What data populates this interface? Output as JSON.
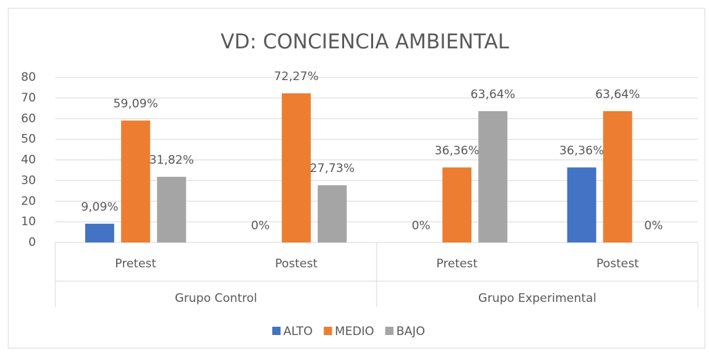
{
  "chart_data": {
    "type": "bar",
    "title": "VD: CONCIENCIA AMBIENTAL",
    "categories": [
      "Pretest",
      "Postest",
      "Pretest",
      "Postest"
    ],
    "groups": [
      "Grupo Control",
      "Grupo Experimental"
    ],
    "series": [
      {
        "name": "ALTO",
        "color": "#4472c4",
        "values": [
          9.09,
          0,
          0,
          36.36
        ],
        "value_labels": [
          "9,09%",
          "0%",
          "0%",
          "36,36%"
        ]
      },
      {
        "name": "MEDIO",
        "color": "#ed7d31",
        "values": [
          59.09,
          72.27,
          36.36,
          63.64
        ],
        "value_labels": [
          "59,09%",
          "72,27%",
          "36,36%",
          "63,64%"
        ]
      },
      {
        "name": "BAJO",
        "color": "#a5a5a5",
        "values": [
          31.82,
          27.73,
          63.64,
          0
        ],
        "value_labels": [
          "31,82%",
          "27,73%",
          "63,64%",
          "0%"
        ]
      }
    ],
    "ylim": [
      0,
      80
    ],
    "yticks": [
      0,
      10,
      20,
      30,
      40,
      50,
      60,
      70,
      80
    ],
    "grid": true,
    "legend": "bottom"
  }
}
